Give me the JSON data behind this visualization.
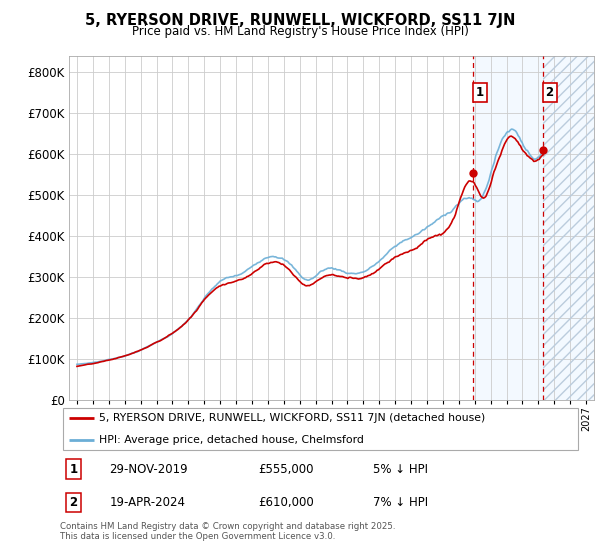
{
  "title": "5, RYERSON DRIVE, RUNWELL, WICKFORD, SS11 7JN",
  "subtitle": "Price paid vs. HM Land Registry's House Price Index (HPI)",
  "legend_line1": "5, RYERSON DRIVE, RUNWELL, WICKFORD, SS11 7JN (detached house)",
  "legend_line2": "HPI: Average price, detached house, Chelmsford",
  "footnote": "Contains HM Land Registry data © Crown copyright and database right 2025.\nThis data is licensed under the Open Government Licence v3.0.",
  "sale1_date": "29-NOV-2019",
  "sale1_price": "£555,000",
  "sale1_note": "5% ↓ HPI",
  "sale2_date": "19-APR-2024",
  "sale2_price": "£610,000",
  "sale2_note": "7% ↓ HPI",
  "sale1_year": 2019.92,
  "sale2_year": 2024.3,
  "hpi_color": "#6baed6",
  "price_color": "#cc0000",
  "vline_color": "#cc0000",
  "ylim_min": 0,
  "ylim_max": 840000,
  "xlim_min": 1994.5,
  "xlim_max": 2027.5,
  "sale1_price_val": 555000,
  "sale2_price_val": 610000
}
